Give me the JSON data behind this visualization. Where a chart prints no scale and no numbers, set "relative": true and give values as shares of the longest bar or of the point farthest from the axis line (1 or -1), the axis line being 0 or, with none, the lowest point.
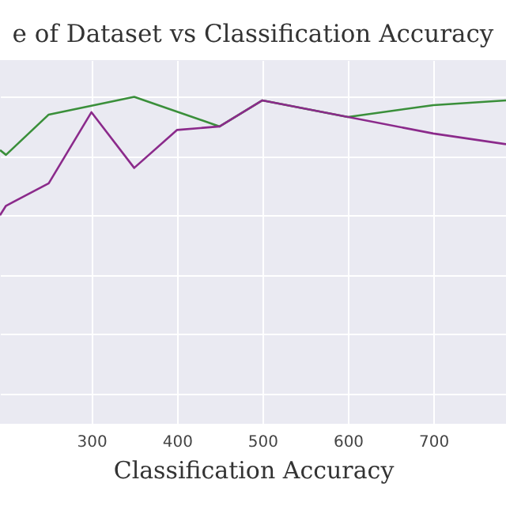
{
  "chart_data": {
    "type": "line",
    "title": "e of Dataset vs Classification Accuracy",
    "xlabel": "Classification Accuracy",
    "relative": true,
    "grid": true,
    "xlim": [
      193,
      785
    ],
    "xticks": [
      300,
      400,
      500,
      600,
      700
    ],
    "series": [
      {
        "color": "#3a8f3a",
        "x": [
          193,
          200,
          250,
          350,
          450,
          500,
          600,
          700,
          785
        ],
        "values": [
          0.55,
          0.51,
          0.85,
          1.0,
          0.75,
          0.97,
          0.83,
          0.93,
          0.97
        ]
      },
      {
        "color": "#8b2a8b",
        "x": [
          193,
          200,
          250,
          300,
          350,
          400,
          450,
          500,
          700,
          785
        ],
        "values": [
          0,
          0.08,
          0.27,
          0.87,
          0.4,
          0.72,
          0.75,
          0.97,
          0.69,
          0.6
        ]
      }
    ]
  }
}
